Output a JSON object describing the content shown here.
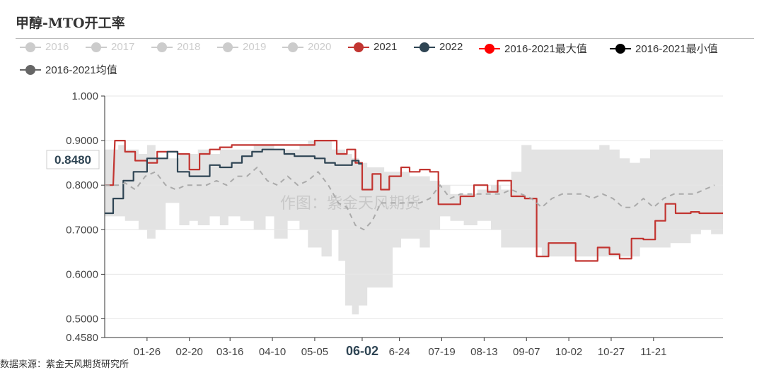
{
  "title": "甲醇-MTO开工率",
  "footnote": "数据来源：紫金天风期货研究所",
  "watermark": "作图：紫金天风期货",
  "tooltip_label": "0.8480",
  "chart_data": {
    "type": "line",
    "ylim": [
      0.458,
      1.0
    ],
    "y_ticks": [
      "1.000",
      "0.9000",
      "0.8000",
      "0.7000",
      "0.6000",
      "0.5000",
      "0.4580"
    ],
    "y_tick_values": [
      1.0,
      0.9,
      0.8,
      0.7,
      0.6,
      0.5,
      0.458
    ],
    "x_labels": [
      "01-26",
      "02-20",
      "03-16",
      "04-10",
      "05-05",
      "06-02",
      "6-24",
      "07-19",
      "08-13",
      "09-07",
      "10-02",
      "10-27",
      "11-21"
    ],
    "x_label_index": [
      25,
      50,
      74,
      99,
      124,
      152,
      174,
      199,
      224,
      249,
      274,
      299,
      324
    ],
    "highlight_x_label": "06-02",
    "legend": [
      {
        "name": "2016",
        "color": "#cccccc",
        "active": false
      },
      {
        "name": "2017",
        "color": "#cccccc",
        "active": false
      },
      {
        "name": "2018",
        "color": "#cccccc",
        "active": false
      },
      {
        "name": "2019",
        "color": "#cccccc",
        "active": false
      },
      {
        "name": "2020",
        "color": "#cccccc",
        "active": false
      },
      {
        "name": "2021",
        "color": "#c23531",
        "active": true
      },
      {
        "name": "2022",
        "color": "#2f4554",
        "active": true
      },
      {
        "name": "2016-2021最大值",
        "color": "#ff0000",
        "active": true
      },
      {
        "name": "2016-2021最小值",
        "color": "#000000",
        "active": true
      },
      {
        "name": "2016-2021均值",
        "color": "#666666",
        "active": true
      }
    ],
    "band": {
      "x": [
        0,
        8,
        12,
        20,
        25,
        30,
        36,
        44,
        50,
        55,
        62,
        68,
        73,
        80,
        88,
        95,
        100,
        108,
        115,
        120,
        128,
        134,
        138,
        142,
        146,
        150,
        155,
        160,
        165,
        170,
        175,
        180,
        186,
        192,
        198,
        204,
        212,
        220,
        228,
        234,
        240,
        246,
        252,
        258,
        264,
        270,
        276,
        284,
        292,
        298,
        304,
        310,
        316,
        322,
        328,
        334,
        340,
        346,
        352,
        358,
        365
      ],
      "max": [
        0.88,
        0.89,
        0.88,
        0.87,
        0.89,
        0.86,
        0.86,
        0.87,
        0.87,
        0.88,
        0.87,
        0.88,
        0.88,
        0.88,
        0.89,
        0.89,
        0.88,
        0.88,
        0.89,
        0.9,
        0.9,
        0.88,
        0.88,
        0.87,
        0.86,
        0.85,
        0.84,
        0.84,
        0.83,
        0.83,
        0.83,
        0.82,
        0.82,
        0.81,
        0.8,
        0.78,
        0.78,
        0.79,
        0.8,
        0.79,
        0.83,
        0.89,
        0.88,
        0.88,
        0.88,
        0.88,
        0.88,
        0.88,
        0.89,
        0.88,
        0.86,
        0.85,
        0.86,
        0.88,
        0.88,
        0.88,
        0.88,
        0.88,
        0.88,
        0.88,
        0.88
      ],
      "min": [
        0.73,
        0.73,
        0.72,
        0.7,
        0.68,
        0.7,
        0.76,
        0.71,
        0.72,
        0.71,
        0.73,
        0.71,
        0.73,
        0.72,
        0.7,
        0.73,
        0.68,
        0.72,
        0.7,
        0.66,
        0.64,
        0.7,
        0.63,
        0.53,
        0.51,
        0.53,
        0.57,
        0.57,
        0.57,
        0.66,
        0.68,
        0.68,
        0.66,
        0.7,
        0.73,
        0.72,
        0.71,
        0.72,
        0.7,
        0.66,
        0.66,
        0.66,
        0.66,
        0.64,
        0.64,
        0.64,
        0.64,
        0.64,
        0.64,
        0.64,
        0.64,
        0.64,
        0.66,
        0.66,
        0.66,
        0.67,
        0.67,
        0.69,
        0.7,
        0.69,
        0.69
      ]
    },
    "series": [
      {
        "name": "2021",
        "color": "#c23531",
        "dashed": false,
        "points": [
          [
            0,
            0.8
          ],
          [
            5,
            0.8
          ],
          [
            6,
            0.9
          ],
          [
            12,
            0.9
          ],
          [
            12,
            0.875
          ],
          [
            18,
            0.875
          ],
          [
            18,
            0.855
          ],
          [
            25,
            0.855
          ],
          [
            25,
            0.85
          ],
          [
            31,
            0.85
          ],
          [
            31,
            0.875
          ],
          [
            43,
            0.875
          ],
          [
            43,
            0.87
          ],
          [
            50,
            0.87
          ],
          [
            50,
            0.835
          ],
          [
            56,
            0.835
          ],
          [
            56,
            0.87
          ],
          [
            62,
            0.87
          ],
          [
            62,
            0.88
          ],
          [
            68,
            0.88
          ],
          [
            68,
            0.885
          ],
          [
            75,
            0.885
          ],
          [
            75,
            0.89
          ],
          [
            124,
            0.89
          ],
          [
            124,
            0.9
          ],
          [
            137,
            0.9
          ],
          [
            137,
            0.87
          ],
          [
            143,
            0.87
          ],
          [
            143,
            0.88
          ],
          [
            148,
            0.88
          ],
          [
            148,
            0.85
          ],
          [
            152,
            0.85
          ],
          [
            152,
            0.79
          ],
          [
            158,
            0.79
          ],
          [
            158,
            0.825
          ],
          [
            163,
            0.825
          ],
          [
            163,
            0.79
          ],
          [
            168,
            0.79
          ],
          [
            168,
            0.82
          ],
          [
            175,
            0.82
          ],
          [
            175,
            0.84
          ],
          [
            180,
            0.84
          ],
          [
            180,
            0.83
          ],
          [
            186,
            0.83
          ],
          [
            186,
            0.835
          ],
          [
            192,
            0.835
          ],
          [
            192,
            0.83
          ],
          [
            197,
            0.83
          ],
          [
            197,
            0.757
          ],
          [
            210,
            0.757
          ],
          [
            210,
            0.775
          ],
          [
            218,
            0.775
          ],
          [
            218,
            0.8
          ],
          [
            226,
            0.8
          ],
          [
            226,
            0.785
          ],
          [
            232,
            0.785
          ],
          [
            232,
            0.81
          ],
          [
            240,
            0.81
          ],
          [
            240,
            0.775
          ],
          [
            248,
            0.775
          ],
          [
            248,
            0.77
          ],
          [
            255,
            0.77
          ],
          [
            255,
            0.64
          ],
          [
            262,
            0.64
          ],
          [
            262,
            0.67
          ],
          [
            278,
            0.67
          ],
          [
            278,
            0.63
          ],
          [
            291,
            0.63
          ],
          [
            291,
            0.66
          ],
          [
            298,
            0.66
          ],
          [
            298,
            0.645
          ],
          [
            304,
            0.645
          ],
          [
            304,
            0.635
          ],
          [
            311,
            0.635
          ],
          [
            311,
            0.68
          ],
          [
            318,
            0.68
          ],
          [
            318,
            0.678
          ],
          [
            325,
            0.678
          ],
          [
            325,
            0.72
          ],
          [
            331,
            0.72
          ],
          [
            331,
            0.758
          ],
          [
            337,
            0.758
          ],
          [
            337,
            0.737
          ],
          [
            346,
            0.737
          ],
          [
            346,
            0.74
          ],
          [
            351,
            0.74
          ],
          [
            351,
            0.737
          ],
          [
            365,
            0.737
          ]
        ]
      },
      {
        "name": "2022",
        "color": "#2f4554",
        "dashed": false,
        "points": [
          [
            0,
            0.737
          ],
          [
            5,
            0.737
          ],
          [
            5,
            0.77
          ],
          [
            11,
            0.77
          ],
          [
            11,
            0.81
          ],
          [
            17,
            0.81
          ],
          [
            17,
            0.83
          ],
          [
            25,
            0.83
          ],
          [
            25,
            0.86
          ],
          [
            37,
            0.86
          ],
          [
            37,
            0.875
          ],
          [
            43,
            0.875
          ],
          [
            43,
            0.83
          ],
          [
            50,
            0.83
          ],
          [
            50,
            0.82
          ],
          [
            62,
            0.82
          ],
          [
            62,
            0.845
          ],
          [
            68,
            0.845
          ],
          [
            68,
            0.84
          ],
          [
            75,
            0.84
          ],
          [
            75,
            0.85
          ],
          [
            81,
            0.85
          ],
          [
            81,
            0.865
          ],
          [
            87,
            0.865
          ],
          [
            87,
            0.875
          ],
          [
            93,
            0.875
          ],
          [
            93,
            0.88
          ],
          [
            106,
            0.88
          ],
          [
            106,
            0.87
          ],
          [
            112,
            0.87
          ],
          [
            112,
            0.865
          ],
          [
            124,
            0.865
          ],
          [
            124,
            0.86
          ],
          [
            130,
            0.86
          ],
          [
            130,
            0.85
          ],
          [
            136,
            0.85
          ],
          [
            136,
            0.845
          ],
          [
            146,
            0.845
          ],
          [
            146,
            0.855
          ],
          [
            150,
            0.855
          ],
          [
            150,
            0.848
          ],
          [
            152,
            0.848
          ]
        ]
      },
      {
        "name": "2016-2021均值",
        "color": "#aaaaaa",
        "dashed": true,
        "points": [
          [
            0,
            0.8
          ],
          [
            8,
            0.8
          ],
          [
            12,
            0.805
          ],
          [
            18,
            0.79
          ],
          [
            24,
            0.82
          ],
          [
            30,
            0.83
          ],
          [
            36,
            0.8
          ],
          [
            42,
            0.79
          ],
          [
            48,
            0.8
          ],
          [
            54,
            0.8
          ],
          [
            60,
            0.8
          ],
          [
            66,
            0.81
          ],
          [
            72,
            0.8
          ],
          [
            78,
            0.82
          ],
          [
            84,
            0.82
          ],
          [
            90,
            0.84
          ],
          [
            96,
            0.81
          ],
          [
            102,
            0.8
          ],
          [
            108,
            0.82
          ],
          [
            114,
            0.8
          ],
          [
            120,
            0.81
          ],
          [
            126,
            0.83
          ],
          [
            132,
            0.8
          ],
          [
            138,
            0.76
          ],
          [
            143,
            0.75
          ],
          [
            148,
            0.71
          ],
          [
            153,
            0.7
          ],
          [
            158,
            0.72
          ],
          [
            163,
            0.76
          ],
          [
            168,
            0.76
          ],
          [
            174,
            0.76
          ],
          [
            180,
            0.76
          ],
          [
            186,
            0.76
          ],
          [
            192,
            0.77
          ],
          [
            198,
            0.8
          ],
          [
            204,
            0.77
          ],
          [
            210,
            0.78
          ],
          [
            216,
            0.78
          ],
          [
            222,
            0.78
          ],
          [
            228,
            0.78
          ],
          [
            234,
            0.78
          ],
          [
            240,
            0.79
          ],
          [
            246,
            0.78
          ],
          [
            252,
            0.77
          ],
          [
            258,
            0.75
          ],
          [
            264,
            0.77
          ],
          [
            270,
            0.78
          ],
          [
            276,
            0.78
          ],
          [
            282,
            0.78
          ],
          [
            288,
            0.77
          ],
          [
            294,
            0.78
          ],
          [
            300,
            0.77
          ],
          [
            306,
            0.75
          ],
          [
            312,
            0.75
          ],
          [
            318,
            0.77
          ],
          [
            324,
            0.75
          ],
          [
            330,
            0.77
          ],
          [
            336,
            0.78
          ],
          [
            342,
            0.78
          ],
          [
            348,
            0.78
          ],
          [
            354,
            0.79
          ],
          [
            360,
            0.8
          ]
        ]
      }
    ]
  }
}
